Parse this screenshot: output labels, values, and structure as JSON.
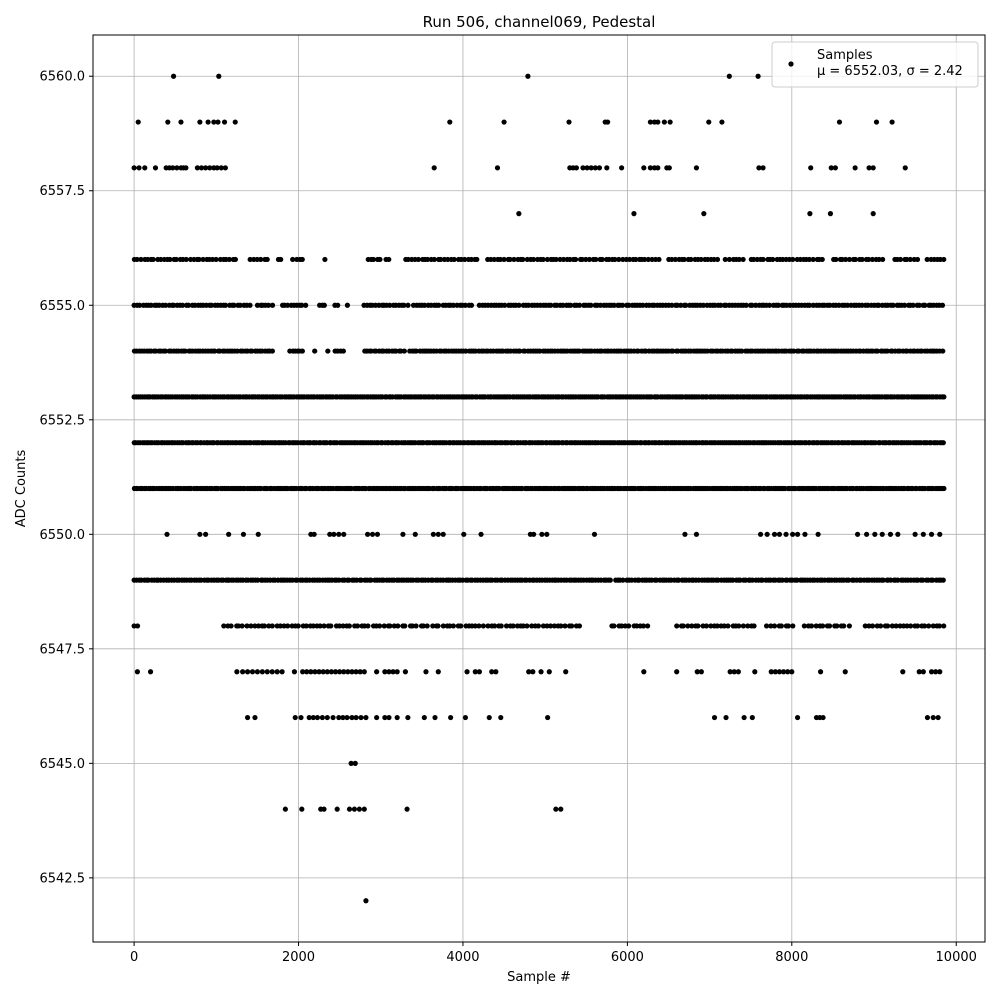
{
  "chart_data": {
    "type": "scatter",
    "title": "Run 506, channel069, Pedestal",
    "xlabel": "Sample #",
    "ylabel": "ADC Counts",
    "xlim": [
      -500,
      10350
    ],
    "ylim": [
      6541.1,
      6560.9
    ],
    "xticks": [
      0,
      2000,
      4000,
      6000,
      8000,
      10000
    ],
    "xtick_labels": [
      "0",
      "2000",
      "4000",
      "6000",
      "8000",
      "10000"
    ],
    "yticks": [
      6542.5,
      6545.0,
      6547.5,
      6550.0,
      6552.5,
      6555.0,
      6557.5,
      6560.0
    ],
    "ytick_labels": [
      "6542.5",
      "6545.0",
      "6547.5",
      "6550.0",
      "6552.5",
      "6555.0",
      "6557.5",
      "6560.0"
    ],
    "grid": true,
    "legend": {
      "position": "top-right",
      "label_line1": "Samples",
      "label_line2": "μ = 6552.03, σ = 2.42"
    },
    "colors": {
      "points": "#000000",
      "grid": "#b0b0b0",
      "axes": "#000000"
    },
    "series": [
      {
        "name": "Samples",
        "rows": [
          {
            "y": 6560,
            "x": [
              480,
              1030,
              4790,
              7240,
              7590
            ]
          },
          {
            "y": 6559,
            "x": [
              50,
              410,
              570,
              800,
              900,
              970,
              1020,
              1100,
              1230,
              3840,
              4500,
              5290,
              5730,
              5760,
              6280,
              6330,
              6370,
              6450,
              6520,
              6990,
              7150,
              8580,
              9030,
              9220
            ]
          },
          {
            "y": 6558,
            "x": [
              0,
              60,
              130,
              260,
              390,
              430,
              470,
              520,
              570,
              600,
              630,
              770,
              820,
              870,
              920,
              970,
              1010,
              1060,
              1110,
              3650,
              4420,
              5300,
              5340,
              5380,
              5460,
              5510,
              5560,
              5610,
              5660,
              5750,
              5930,
              6200,
              6280,
              6330,
              6370,
              6480,
              6510,
              6840,
              7600,
              7650,
              8230,
              8480,
              8530,
              8770,
              8940,
              8990,
              9380
            ]
          },
          {
            "y": 6557,
            "x": [
              4680,
              6080,
              6930,
              8220,
              8470,
              8990
            ]
          },
          {
            "y": 6556,
            "x_ranges": [
              [
                0,
                1250
              ],
              [
                1420,
                1620
              ],
              [
                1750,
                1800
              ],
              [
                1930,
                2050
              ],
              [
                2320,
                2340
              ],
              [
                2840,
                3000
              ],
              [
                3060,
                3100
              ],
              [
                3300,
                4200
              ],
              [
                4300,
                6400
              ],
              [
                6500,
                7100
              ],
              [
                7200,
                7400
              ],
              [
                7500,
                8400
              ],
              [
                8500,
                9100
              ],
              [
                9250,
                9550
              ],
              [
                9650,
                9850
              ]
            ],
            "step": 40
          },
          {
            "y": 6555,
            "x_ranges": [
              [
                0,
                1400
              ],
              [
                1500,
                1700
              ],
              [
                1800,
                2100
              ],
              [
                2250,
                2350
              ],
              [
                2450,
                2500
              ],
              [
                2600,
                2620
              ],
              [
                2800,
                3350
              ],
              [
                3400,
                4100
              ],
              [
                4200,
                9850
              ]
            ],
            "step": 35
          },
          {
            "y": 6554,
            "x_ranges": [
              [
                0,
                1700
              ],
              [
                1900,
                2050
              ],
              [
                2200,
                2220
              ],
              [
                2350,
                2370
              ],
              [
                2450,
                2550
              ],
              [
                2800,
                3300
              ],
              [
                3350,
                9850
              ]
            ],
            "step": 30
          },
          {
            "y": 6553,
            "x_ranges": [
              [
                0,
                9850
              ]
            ],
            "step": 25
          },
          {
            "y": 6552,
            "x_ranges": [
              [
                0,
                9850
              ]
            ],
            "step": 25
          },
          {
            "y": 6551,
            "x_ranges": [
              [
                0,
                9850
              ]
            ],
            "step": 25
          },
          {
            "y": 6550,
            "x": [
              400,
              800,
              870,
              1150,
              1330,
              1510,
              2150,
              2190,
              2380,
              2430,
              2490,
              2550,
              2840,
              2900,
              2960,
              3270,
              3420,
              3640,
              3700,
              3760,
              4010,
              4220,
              4820,
              4860,
              4960,
              5020,
              5600,
              6700,
              6840,
              7620,
              7700,
              7790,
              7850,
              7930,
              8010,
              8070,
              8160,
              8320,
              8800,
              8910,
              9010,
              9100,
              9200,
              9290,
              9500,
              9600,
              9700,
              9800
            ]
          },
          {
            "y": 6549,
            "x_ranges": [
              [
                0,
                500
              ],
              [
                520,
                1150
              ],
              [
                1150,
                5800
              ],
              [
                5850,
                5950
              ],
              [
                6000,
                9850
              ]
            ],
            "step": 30
          },
          {
            "y": 6548,
            "x_ranges": [
              [
                0,
                80
              ],
              [
                1100,
                5450
              ],
              [
                5800,
                6250
              ],
              [
                6600,
                7550
              ],
              [
                7700,
                8050
              ],
              [
                8150,
                8700
              ],
              [
                8900,
                9850
              ]
            ],
            "step": 45
          },
          {
            "y": 6547,
            "x": [
              40,
              200,
              1250,
              1320,
              1380,
              1440,
              1500,
              1560,
              1620,
              1680,
              1740,
              1800,
              1950,
              2050,
              2100,
              2150,
              2200,
              2250,
              2300,
              2350,
              2400,
              2450,
              2500,
              2550,
              2600,
              2650,
              2700,
              2750,
              2800,
              2950,
              3050,
              3100,
              3150,
              3200,
              3300,
              3550,
              3700,
              4050,
              4150,
              4200,
              4350,
              4400,
              4800,
              4850,
              4950,
              5050,
              5250,
              6200,
              6600,
              6850,
              6900,
              7250,
              7300,
              7350,
              7550,
              7750,
              7800,
              7850,
              7900,
              7950,
              8000,
              8350,
              8650,
              9350,
              9550,
              9600,
              9700,
              9750,
              9800
            ]
          },
          {
            "y": 6546,
            "x": [
              1380,
              1470,
              1960,
              2030,
              2130,
              2180,
              2230,
              2290,
              2350,
              2420,
              2490,
              2540,
              2590,
              2650,
              2700,
              2760,
              2820,
              2950,
              3050,
              3100,
              3200,
              3330,
              3530,
              3660,
              3850,
              4030,
              4320,
              4460,
              5030,
              7060,
              7200,
              7420,
              7520,
              8070,
              8300,
              8340,
              8380,
              9650,
              9720,
              9780
            ]
          },
          {
            "y": 6545,
            "x": [
              2640,
              2690
            ]
          },
          {
            "y": 6544,
            "x": [
              1840,
              2040,
              2270,
              2310,
              2470,
              2620,
              2680,
              2740,
              2800,
              3320,
              5130,
              5190
            ]
          },
          {
            "y": 6542,
            "x": [
              2820
            ]
          }
        ]
      }
    ]
  }
}
